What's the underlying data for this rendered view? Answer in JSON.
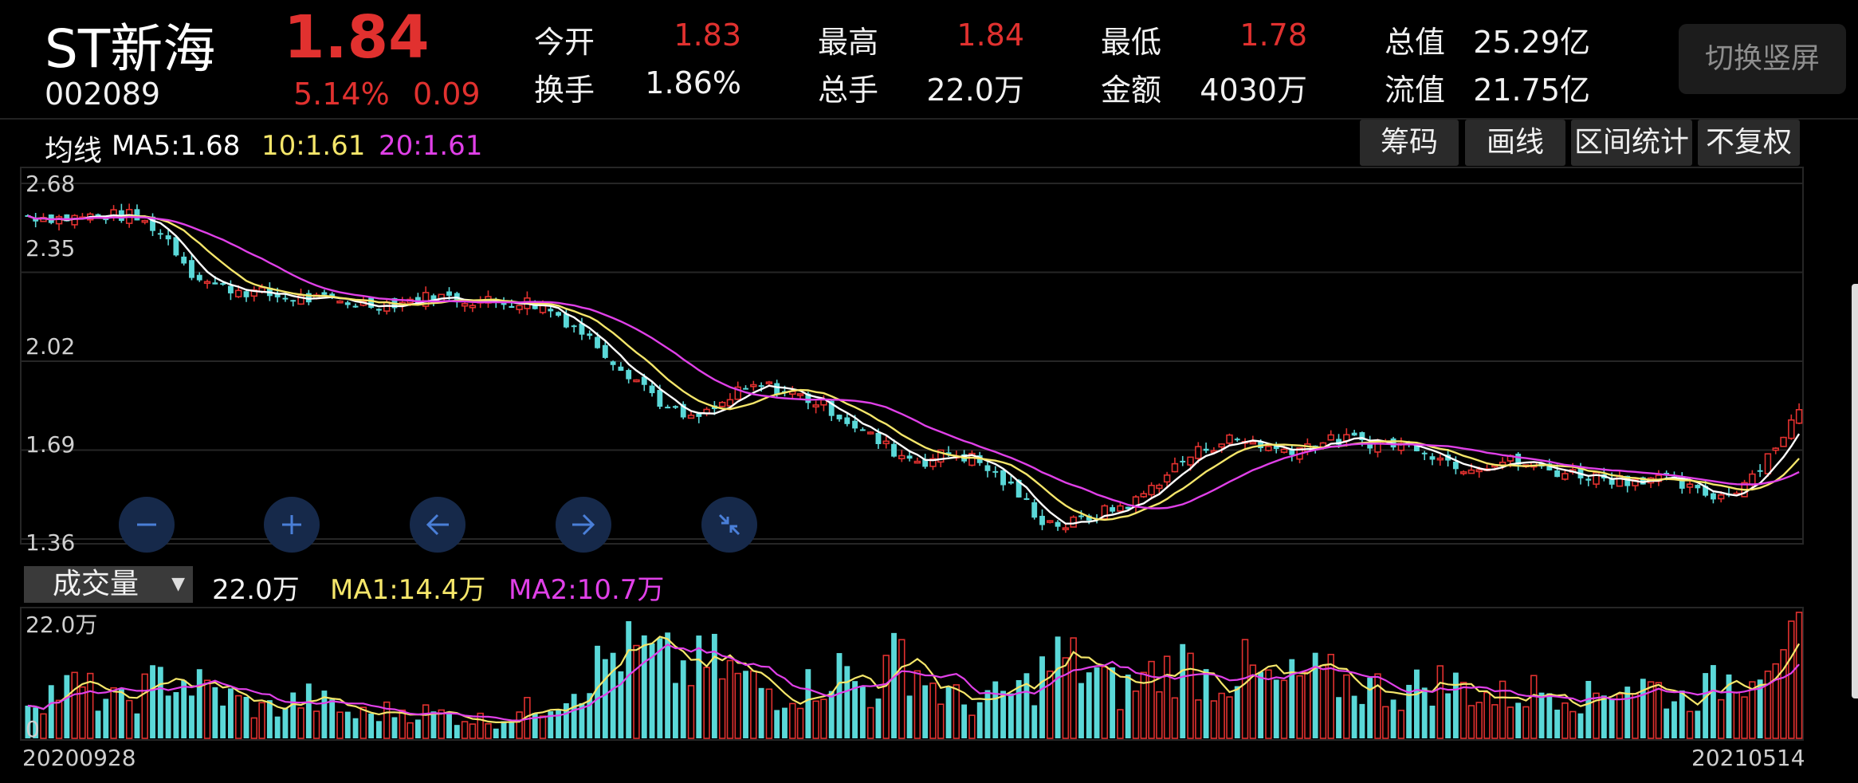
{
  "stock": {
    "name": "ST新海",
    "code": "002089",
    "price": "1.84",
    "change_pct": "5.14%",
    "change_amt": "0.09"
  },
  "quotes": [
    {
      "label": "今开",
      "value": "1.83",
      "color": "red"
    },
    {
      "label": "最高",
      "value": "1.84",
      "color": "red"
    },
    {
      "label": "最低",
      "value": "1.78",
      "color": "red"
    },
    {
      "label": "总值",
      "value": "25.29亿",
      "color": "white"
    },
    {
      "label": "换手",
      "value": "1.86%",
      "color": "white"
    },
    {
      "label": "总手",
      "value": "22.0万",
      "color": "white"
    },
    {
      "label": "金额",
      "value": "4030万",
      "color": "white"
    },
    {
      "label": "流值",
      "value": "21.75亿",
      "color": "white"
    }
  ],
  "switch_label": "切换竖屏",
  "ma": {
    "label": "均线",
    "ma5": "MA5:1.68",
    "ma10": "10:1.61",
    "ma20": "20:1.61"
  },
  "tools": [
    "筹码",
    "画线",
    "区间统计",
    "不复权"
  ],
  "price_axis": [
    "2.68",
    "2.35",
    "2.02",
    "1.69",
    "1.36"
  ],
  "controls": [
    {
      "name": "zoom-out-icon"
    },
    {
      "name": "zoom-in-icon"
    },
    {
      "name": "arrow-left-icon"
    },
    {
      "name": "arrow-right-icon"
    },
    {
      "name": "collapse-icon"
    }
  ],
  "volume": {
    "selector": "成交量",
    "value": "22.0万",
    "ma1": "MA1:14.4万",
    "ma2": "MA2:10.7万",
    "axis_top": "22.0万",
    "axis_zero": "0"
  },
  "dates": {
    "start": "20200928",
    "end": "20210514"
  },
  "colors": {
    "up": "#e1312f",
    "down": "#5ad8d8",
    "ma5": "#ffffff",
    "ma10": "#f5e66a",
    "ma20": "#e040e8"
  },
  "chart_data": {
    "type": "candlestick",
    "price_ylim": [
      1.36,
      2.68
    ],
    "price_ticks": [
      2.68,
      2.35,
      2.02,
      1.69,
      1.36
    ],
    "x_start": "20200928",
    "x_end": "20210514",
    "close_trend": [
      [
        0,
        2.56
      ],
      [
        5,
        2.55
      ],
      [
        9,
        2.56
      ],
      [
        13,
        2.56
      ],
      [
        16,
        2.52
      ],
      [
        18,
        2.47
      ],
      [
        21,
        2.35
      ],
      [
        24,
        2.3
      ],
      [
        28,
        2.28
      ],
      [
        32,
        2.26
      ],
      [
        36,
        2.25
      ],
      [
        40,
        2.24
      ],
      [
        44,
        2.23
      ],
      [
        48,
        2.24
      ],
      [
        52,
        2.26
      ],
      [
        56,
        2.25
      ],
      [
        60,
        2.24
      ],
      [
        64,
        2.24
      ],
      [
        67,
        2.21
      ],
      [
        70,
        2.15
      ],
      [
        73,
        2.08
      ],
      [
        76,
        2.0
      ],
      [
        79,
        1.93
      ],
      [
        82,
        1.84
      ],
      [
        85,
        1.8
      ],
      [
        88,
        1.84
      ],
      [
        91,
        1.9
      ],
      [
        94,
        1.93
      ],
      [
        97,
        1.91
      ],
      [
        100,
        1.88
      ],
      [
        103,
        1.84
      ],
      [
        106,
        1.78
      ],
      [
        109,
        1.72
      ],
      [
        112,
        1.67
      ],
      [
        115,
        1.65
      ],
      [
        118,
        1.68
      ],
      [
        121,
        1.66
      ],
      [
        124,
        1.6
      ],
      [
        127,
        1.52
      ],
      [
        130,
        1.43
      ],
      [
        133,
        1.41
      ],
      [
        136,
        1.44
      ],
      [
        139,
        1.47
      ],
      [
        142,
        1.5
      ],
      [
        145,
        1.58
      ],
      [
        148,
        1.65
      ],
      [
        151,
        1.7
      ],
      [
        154,
        1.73
      ],
      [
        157,
        1.72
      ],
      [
        160,
        1.69
      ],
      [
        163,
        1.7
      ],
      [
        166,
        1.72
      ],
      [
        169,
        1.73
      ],
      [
        172,
        1.72
      ],
      [
        175,
        1.71
      ],
      [
        178,
        1.71
      ],
      [
        181,
        1.66
      ],
      [
        184,
        1.63
      ],
      [
        187,
        1.64
      ],
      [
        190,
        1.65
      ],
      [
        193,
        1.63
      ],
      [
        196,
        1.61
      ],
      [
        199,
        1.6
      ],
      [
        202,
        1.59
      ],
      [
        205,
        1.58
      ],
      [
        208,
        1.59
      ],
      [
        211,
        1.57
      ],
      [
        214,
        1.53
      ],
      [
        217,
        1.52
      ],
      [
        219,
        1.55
      ],
      [
        221,
        1.6
      ],
      [
        223,
        1.67
      ],
      [
        225,
        1.75
      ],
      [
        227,
        1.84
      ]
    ],
    "volume_trend": [
      [
        0,
        7
      ],
      [
        6,
        9
      ],
      [
        12,
        6
      ],
      [
        18,
        11
      ],
      [
        24,
        8
      ],
      [
        30,
        5
      ],
      [
        36,
        7
      ],
      [
        42,
        4
      ],
      [
        48,
        5
      ],
      [
        54,
        4
      ],
      [
        60,
        3
      ],
      [
        66,
        6
      ],
      [
        72,
        11
      ],
      [
        76,
        16
      ],
      [
        80,
        14
      ],
      [
        84,
        12
      ],
      [
        88,
        13
      ],
      [
        92,
        10
      ],
      [
        96,
        8
      ],
      [
        100,
        9
      ],
      [
        104,
        12
      ],
      [
        108,
        8
      ],
      [
        112,
        15
      ],
      [
        116,
        9
      ],
      [
        120,
        6
      ],
      [
        124,
        7
      ],
      [
        128,
        9
      ],
      [
        132,
        14
      ],
      [
        136,
        12
      ],
      [
        140,
        8
      ],
      [
        144,
        11
      ],
      [
        148,
        13
      ],
      [
        152,
        10
      ],
      [
        156,
        12
      ],
      [
        160,
        9
      ],
      [
        164,
        11
      ],
      [
        168,
        10
      ],
      [
        172,
        9
      ],
      [
        176,
        8
      ],
      [
        180,
        10
      ],
      [
        184,
        9
      ],
      [
        188,
        7
      ],
      [
        192,
        8
      ],
      [
        196,
        9
      ],
      [
        200,
        7
      ],
      [
        204,
        10
      ],
      [
        208,
        9
      ],
      [
        212,
        7
      ],
      [
        216,
        9
      ],
      [
        220,
        12
      ],
      [
        224,
        18
      ],
      [
        227,
        22
      ]
    ]
  }
}
